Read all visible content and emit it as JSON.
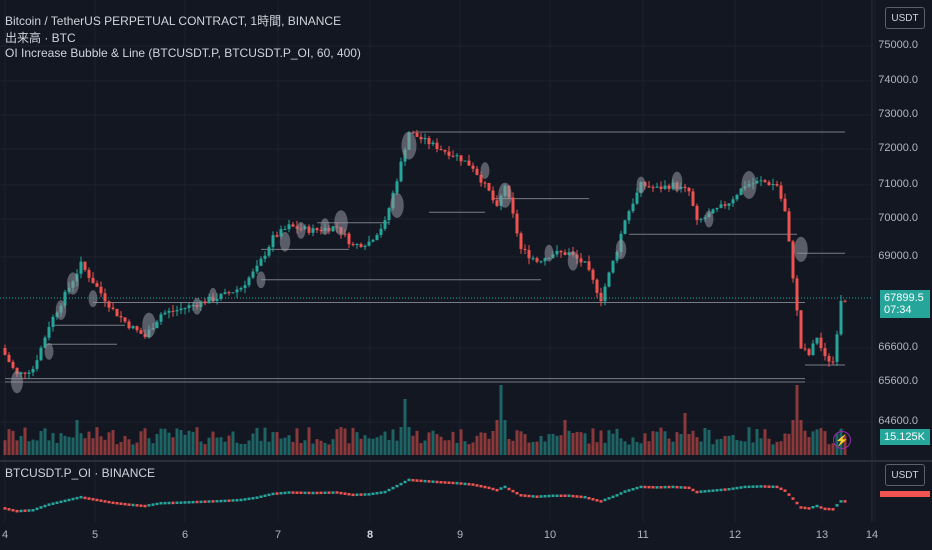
{
  "legend": {
    "main_title": "Bitcoin / TetherUS PERPETUAL CONTRACT, 1時間, BINANCE",
    "volume_title": "出来高 · BTC",
    "indicator_title": "OI Increase Bubble & Line (BTCUSDT.P, BTCUSDT.P_OI, 60, 400)",
    "sub_title": "BTCUSDT.P_OI · BINANCE"
  },
  "currency_label": "USDT",
  "price_tag": {
    "price": "67899.5",
    "countdown": "07:34"
  },
  "volume_tag": "15.125K",
  "colors": {
    "up": "#26a69a",
    "down": "#ef5350",
    "background": "#131722",
    "grid": "#1e222d",
    "bubble": "#9598a1",
    "line": "#787b86"
  },
  "icons": {
    "alert": "lightning-icon"
  },
  "chart_data": {
    "type": "candlestick",
    "price_axis": {
      "ticks": [
        75000,
        74000,
        73000,
        72000,
        71000,
        70000,
        69000,
        66600,
        65600,
        64600
      ],
      "tick_labels": [
        "75000.0",
        "74000.0",
        "73000.0",
        "72000.0",
        "71000.0",
        "70000.0",
        "69000.0",
        "66600.0",
        "65600.0",
        "64600.0"
      ],
      "range": [
        64000,
        75700
      ]
    },
    "time_axis": {
      "labels": [
        "4",
        "5",
        "6",
        "7",
        "8",
        "9",
        "10",
        "11",
        "12",
        "13",
        "14"
      ],
      "bold": [
        "8"
      ]
    },
    "price_keypoints": [
      {
        "t": 0,
        "p": 66600
      },
      {
        "t": 4,
        "p": 65800
      },
      {
        "t": 8,
        "p": 66000
      },
      {
        "t": 12,
        "p": 67200
      },
      {
        "t": 16,
        "p": 68000
      },
      {
        "t": 20,
        "p": 68800
      },
      {
        "t": 24,
        "p": 68200
      },
      {
        "t": 28,
        "p": 67600
      },
      {
        "t": 32,
        "p": 67200
      },
      {
        "t": 36,
        "p": 66900
      },
      {
        "t": 40,
        "p": 67500
      },
      {
        "t": 44,
        "p": 67600
      },
      {
        "t": 50,
        "p": 67800
      },
      {
        "t": 56,
        "p": 68000
      },
      {
        "t": 60,
        "p": 68200
      },
      {
        "t": 64,
        "p": 68700
      },
      {
        "t": 68,
        "p": 69500
      },
      {
        "t": 72,
        "p": 69800
      },
      {
        "t": 78,
        "p": 69700
      },
      {
        "t": 84,
        "p": 69800
      },
      {
        "t": 88,
        "p": 69300
      },
      {
        "t": 92,
        "p": 69400
      },
      {
        "t": 96,
        "p": 69900
      },
      {
        "t": 100,
        "p": 71600
      },
      {
        "t": 102,
        "p": 72500
      },
      {
        "t": 105,
        "p": 72300
      },
      {
        "t": 110,
        "p": 72000
      },
      {
        "t": 114,
        "p": 71800
      },
      {
        "t": 118,
        "p": 71500
      },
      {
        "t": 122,
        "p": 70800
      },
      {
        "t": 124,
        "p": 70300
      },
      {
        "t": 126,
        "p": 71000
      },
      {
        "t": 130,
        "p": 69200
      },
      {
        "t": 134,
        "p": 68900
      },
      {
        "t": 138,
        "p": 69100
      },
      {
        "t": 142,
        "p": 69100
      },
      {
        "t": 146,
        "p": 68800
      },
      {
        "t": 150,
        "p": 67900
      },
      {
        "t": 154,
        "p": 69200
      },
      {
        "t": 156,
        "p": 70000
      },
      {
        "t": 160,
        "p": 71000
      },
      {
        "t": 164,
        "p": 70900
      },
      {
        "t": 168,
        "p": 71000
      },
      {
        "t": 172,
        "p": 70800
      },
      {
        "t": 174,
        "p": 69900
      },
      {
        "t": 178,
        "p": 70200
      },
      {
        "t": 182,
        "p": 70500
      },
      {
        "t": 186,
        "p": 71000
      },
      {
        "t": 190,
        "p": 71100
      },
      {
        "t": 194,
        "p": 71000
      },
      {
        "t": 196,
        "p": 70200
      },
      {
        "t": 198,
        "p": 68500
      },
      {
        "t": 200,
        "p": 66600
      },
      {
        "t": 202,
        "p": 66400
      },
      {
        "t": 204,
        "p": 66900
      },
      {
        "t": 206,
        "p": 66300
      },
      {
        "t": 208,
        "p": 66200
      },
      {
        "t": 210,
        "p": 67900
      }
    ],
    "bubbles": [
      {
        "t": 3,
        "p": 65600,
        "r": 8
      },
      {
        "t": 11,
        "p": 66500,
        "r": 6
      },
      {
        "t": 14,
        "p": 67600,
        "r": 7
      },
      {
        "t": 17,
        "p": 68300,
        "r": 8
      },
      {
        "t": 22,
        "p": 67900,
        "r": 6
      },
      {
        "t": 36,
        "p": 67200,
        "r": 9
      },
      {
        "t": 48,
        "p": 67700,
        "r": 6
      },
      {
        "t": 52,
        "p": 68000,
        "r": 5
      },
      {
        "t": 64,
        "p": 68400,
        "r": 6
      },
      {
        "t": 70,
        "p": 69400,
        "r": 7
      },
      {
        "t": 74,
        "p": 69700,
        "r": 6
      },
      {
        "t": 80,
        "p": 69800,
        "r": 6
      },
      {
        "t": 84,
        "p": 69900,
        "r": 9
      },
      {
        "t": 98,
        "p": 70400,
        "r": 9
      },
      {
        "t": 101,
        "p": 72100,
        "r": 10
      },
      {
        "t": 120,
        "p": 71400,
        "r": 6
      },
      {
        "t": 125,
        "p": 70700,
        "r": 9
      },
      {
        "t": 136,
        "p": 69100,
        "r": 6
      },
      {
        "t": 142,
        "p": 68900,
        "r": 7
      },
      {
        "t": 154,
        "p": 69200,
        "r": 7
      },
      {
        "t": 159,
        "p": 71000,
        "r": 6
      },
      {
        "t": 168,
        "p": 71100,
        "r": 7
      },
      {
        "t": 176,
        "p": 70000,
        "r": 6
      },
      {
        "t": 186,
        "p": 71000,
        "r": 10
      },
      {
        "t": 199,
        "p": 69200,
        "r": 9
      }
    ],
    "oi_lines": [
      {
        "p": 72500,
        "t0": 102,
        "t1": 210
      },
      {
        "p": 70600,
        "t0": 122,
        "t1": 146
      },
      {
        "p": 70200,
        "t0": 106,
        "t1": 120
      },
      {
        "p": 69900,
        "t0": 78,
        "t1": 96
      },
      {
        "p": 69600,
        "t0": 156,
        "t1": 198
      },
      {
        "p": 69200,
        "t0": 64,
        "t1": 86
      },
      {
        "p": 69100,
        "t0": 198,
        "t1": 210
      },
      {
        "p": 68400,
        "t0": 64,
        "t1": 134
      },
      {
        "p": 67800,
        "t0": 22,
        "t1": 200
      },
      {
        "p": 67200,
        "t0": 12,
        "t1": 30
      },
      {
        "p": 66700,
        "t0": 10,
        "t1": 28
      },
      {
        "p": 66100,
        "t0": 200,
        "t1": 210
      },
      {
        "p": 65700,
        "t0": 0,
        "t1": 200
      },
      {
        "p": 65600,
        "t0": 0,
        "t1": 200
      }
    ],
    "volume_spikes": [
      {
        "t": 124,
        "v": 1.0
      },
      {
        "t": 198,
        "v": 1.0
      },
      {
        "t": 100,
        "v": 0.8
      },
      {
        "t": 170,
        "v": 0.6
      },
      {
        "t": 18,
        "v": 0.5
      },
      {
        "t": 140,
        "v": 0.5
      }
    ]
  }
}
